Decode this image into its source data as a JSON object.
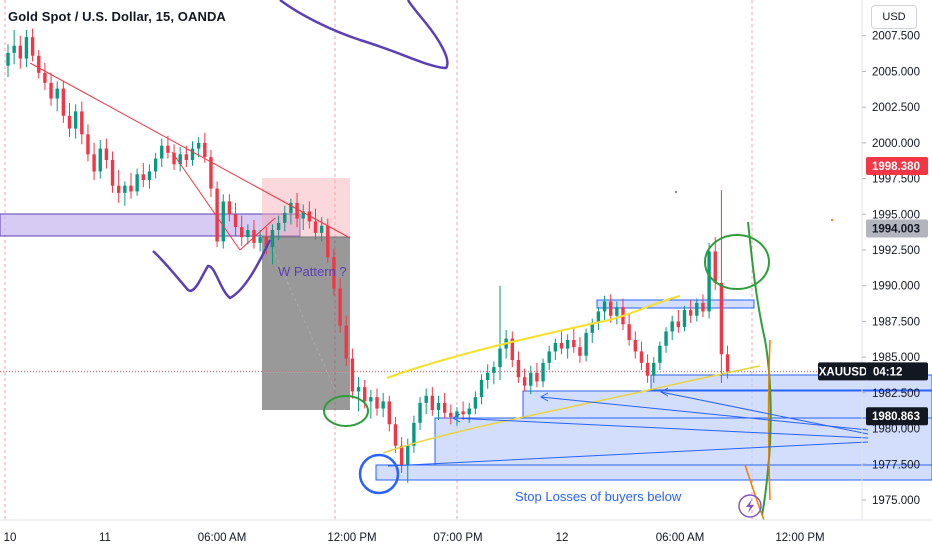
{
  "header": {
    "title": "Gold Spot / U.S. Dollar, 15, OANDA",
    "currency": "USD"
  },
  "colors": {
    "up": "#089981",
    "down": "#f23645",
    "blue_zone": "#2962ff",
    "purple_zone": "#9c7fd6",
    "pink_zone": "#f7a9b0",
    "trend_red": "#f23645",
    "yellow": "#f5e02a",
    "green": "#2e9e3a",
    "orange": "#f57c00",
    "purple_stroke": "#5b3fb6"
  },
  "chart_data": {
    "type": "candlestick",
    "symbol": "XAUUSD",
    "timeframe": "15",
    "ylim": [
      1973.6,
      2010.0
    ],
    "y_ticks": [
      1975.0,
      1977.5,
      1980.0,
      1982.5,
      1985.0,
      1987.5,
      1990.0,
      1992.5,
      1995.0,
      1997.5,
      2000.0,
      2002.5,
      2005.0,
      2007.5
    ],
    "y_tick_labels": [
      "1975.000",
      "1977.500",
      "1980.000",
      "1982.500",
      "1985.000",
      "1987.500",
      "1990.000",
      "1992.500",
      "1995.000",
      "1997.500",
      "2000.000",
      "2002.500",
      "2005.000",
      "2007.500"
    ],
    "x_tick_labels": [
      "10",
      "11",
      "06:00 AM",
      "12:00 PM",
      "07:00 PM",
      "12",
      "06:00 AM",
      "12:00 PM"
    ],
    "price_tags": [
      {
        "label": "1998.380",
        "value": 1998.38,
        "style": "red"
      },
      {
        "label": "1994.003",
        "value": 1994.003,
        "style": "grey"
      },
      {
        "label": "04:12",
        "value": 1984.0,
        "style": "dark",
        "symbol": "XAUUSD"
      },
      {
        "label": "1980.863",
        "value": 1980.863,
        "style": "dark"
      }
    ],
    "current_price_line": 1984.0,
    "annotations": [
      {
        "text": "W Pattern ?"
      },
      {
        "text": "Stop Losses of buyers below"
      }
    ],
    "candles": [
      [
        2005.4,
        2006.9,
        2004.6,
        2006.3
      ],
      [
        2006.3,
        2007.9,
        2005.5,
        2006.8
      ],
      [
        2006.8,
        2007.5,
        2005.2,
        2005.9
      ],
      [
        2005.9,
        2007.9,
        2005.3,
        2007.4
      ],
      [
        2007.4,
        2008.0,
        2005.7,
        2006.1
      ],
      [
        2006.1,
        2006.5,
        2004.5,
        2004.9
      ],
      [
        2004.9,
        2005.6,
        2003.7,
        2004.2
      ],
      [
        2004.2,
        2004.9,
        2002.6,
        2003.1
      ],
      [
        2003.1,
        2004.3,
        2002.2,
        2003.8
      ],
      [
        2003.8,
        2004.3,
        2001.4,
        2001.9
      ],
      [
        2001.9,
        2002.8,
        2000.4,
        2001.0
      ],
      [
        2001.0,
        2002.7,
        2000.3,
        2002.2
      ],
      [
        2002.2,
        2002.9,
        1999.9,
        2000.6
      ],
      [
        2000.6,
        2001.3,
        1998.7,
        1999.2
      ],
      [
        1999.2,
        2000.0,
        1997.4,
        1998.0
      ],
      [
        1998.0,
        2000.2,
        1997.5,
        1999.6
      ],
      [
        1999.6,
        2000.3,
        1998.2,
        1998.8
      ],
      [
        1998.8,
        1999.4,
        1996.5,
        1997.0
      ],
      [
        1997.0,
        1998.1,
        1995.8,
        1996.5
      ],
      [
        1996.5,
        1997.3,
        1995.6,
        1997.0
      ],
      [
        1997.0,
        1997.9,
        1996.1,
        1996.6
      ],
      [
        1996.6,
        1998.2,
        1996.3,
        1997.8
      ],
      [
        1997.8,
        1998.6,
        1996.9,
        1997.4
      ],
      [
        1997.4,
        1998.5,
        1996.8,
        1998.0
      ],
      [
        1998.0,
        1999.3,
        1997.5,
        1998.9
      ],
      [
        1998.9,
        2000.3,
        1998.3,
        1999.8
      ],
      [
        1999.8,
        2000.5,
        1998.9,
        1999.3
      ],
      [
        1999.3,
        1999.9,
        1998.1,
        1998.5
      ],
      [
        1998.5,
        1999.7,
        1998.0,
        1999.2
      ],
      [
        1999.2,
        1999.8,
        1998.3,
        1998.8
      ],
      [
        1998.8,
        2000.1,
        1998.4,
        1999.6
      ],
      [
        1999.6,
        2000.4,
        1999.0,
        2000.0
      ],
      [
        2000.0,
        2000.7,
        1998.6,
        1999.0
      ],
      [
        1999.0,
        1999.5,
        1996.2,
        1996.8
      ],
      [
        1996.8,
        1997.3,
        1992.7,
        1993.1
      ],
      [
        1993.1,
        1996.4,
        1992.6,
        1995.9
      ],
      [
        1995.9,
        1996.4,
        1994.5,
        1995.0
      ],
      [
        1995.0,
        1995.8,
        1993.5,
        1994.1
      ],
      [
        1994.1,
        1994.9,
        1992.8,
        1993.4
      ],
      [
        1993.4,
        1994.3,
        1992.9,
        1993.9
      ],
      [
        1993.9,
        1994.6,
        1992.6,
        1993.0
      ],
      [
        1993.0,
        1993.9,
        1992.4,
        1993.4
      ],
      [
        1993.4,
        1994.1,
        1992.2,
        1992.7
      ],
      [
        1992.7,
        1994.3,
        1991.5,
        1993.9
      ],
      [
        1993.9,
        1994.9,
        1993.2,
        1994.4
      ],
      [
        1994.4,
        1995.6,
        1993.8,
        1995.1
      ],
      [
        1995.1,
        1996.1,
        1994.3,
        1995.8
      ],
      [
        1995.8,
        1996.5,
        1994.1,
        1994.7
      ],
      [
        1994.7,
        1995.7,
        1993.9,
        1995.2
      ],
      [
        1995.2,
        1995.9,
        1994.0,
        1994.5
      ],
      [
        1994.5,
        1995.4,
        1993.2,
        1993.7
      ],
      [
        1993.7,
        1994.8,
        1993.1,
        1994.2
      ],
      [
        1994.2,
        1994.7,
        1991.6,
        1992.0
      ],
      [
        1992.0,
        1992.6,
        1989.3,
        1989.8
      ],
      [
        1989.8,
        1990.5,
        1986.7,
        1987.2
      ],
      [
        1987.2,
        1987.9,
        1984.4,
        1984.9
      ],
      [
        1984.9,
        1985.6,
        1982.1,
        1982.6
      ],
      [
        1982.6,
        1983.6,
        1981.2,
        1982.9
      ],
      [
        1982.9,
        1983.4,
        1981.4,
        1981.9
      ],
      [
        1981.9,
        1982.7,
        1980.7,
        1982.2
      ],
      [
        1982.2,
        1982.8,
        1980.9,
        1981.4
      ],
      [
        1981.4,
        1982.5,
        1980.8,
        1981.9
      ],
      [
        1981.9,
        1982.3,
        1979.8,
        1980.3
      ],
      [
        1980.3,
        1980.8,
        1978.3,
        1978.8
      ],
      [
        1978.8,
        1979.4,
        1976.9,
        1977.4
      ],
      [
        1977.4,
        1979.3,
        1976.2,
        1978.8
      ],
      [
        1978.8,
        1980.9,
        1978.3,
        1980.4
      ],
      [
        1980.4,
        1982.2,
        1979.9,
        1981.8
      ],
      [
        1981.8,
        1982.8,
        1981.0,
        1982.3
      ],
      [
        1982.3,
        1982.9,
        1980.9,
        1981.3
      ],
      [
        1981.3,
        1982.3,
        1980.6,
        1981.8
      ],
      [
        1981.8,
        1982.5,
        1980.7,
        1981.1
      ],
      [
        1981.1,
        1981.7,
        1980.3,
        1980.8
      ],
      [
        1980.8,
        1981.5,
        1980.2,
        1981.2
      ],
      [
        1981.2,
        1981.9,
        1980.6,
        1981.0
      ],
      [
        1981.0,
        1981.8,
        1980.4,
        1981.4
      ],
      [
        1981.4,
        1982.6,
        1981.0,
        1982.2
      ],
      [
        1982.2,
        1983.8,
        1981.7,
        1983.4
      ],
      [
        1983.4,
        1984.5,
        1982.8,
        1983.9
      ],
      [
        1983.9,
        1984.7,
        1983.1,
        1984.3
      ],
      [
        1984.3,
        1990.0,
        1983.4,
        1985.6
      ],
      [
        1985.6,
        1986.9,
        1984.9,
        1986.3
      ],
      [
        1986.3,
        1986.8,
        1984.3,
        1984.8
      ],
      [
        1984.8,
        1985.4,
        1983.2,
        1983.6
      ],
      [
        1983.6,
        1984.2,
        1982.6,
        1983.0
      ],
      [
        1983.0,
        1984.4,
        1982.4,
        1983.9
      ],
      [
        1983.9,
        1984.6,
        1982.9,
        1983.3
      ],
      [
        1983.3,
        1984.9,
        1982.9,
        1984.6
      ],
      [
        1984.6,
        1985.8,
        1984.1,
        1985.4
      ],
      [
        1985.4,
        1986.3,
        1984.8,
        1986.0
      ],
      [
        1986.0,
        1986.8,
        1985.2,
        1985.6
      ],
      [
        1985.6,
        1986.6,
        1984.9,
        1986.2
      ],
      [
        1986.2,
        1987.0,
        1985.3,
        1985.7
      ],
      [
        1985.7,
        1986.4,
        1984.6,
        1985.1
      ],
      [
        1985.1,
        1987.0,
        1984.7,
        1986.7
      ],
      [
        1986.7,
        1987.7,
        1986.0,
        1987.4
      ],
      [
        1987.4,
        1988.5,
        1986.9,
        1988.2
      ],
      [
        1988.2,
        1989.3,
        1987.6,
        1988.9
      ],
      [
        1988.9,
        1989.4,
        1987.4,
        1987.9
      ],
      [
        1987.9,
        1988.9,
        1987.3,
        1988.5
      ],
      [
        1988.5,
        1989.1,
        1986.9,
        1987.3
      ],
      [
        1987.3,
        1988.0,
        1985.8,
        1986.2
      ],
      [
        1986.2,
        1986.8,
        1984.9,
        1985.4
      ],
      [
        1985.4,
        1986.1,
        1984.1,
        1984.6
      ],
      [
        1984.6,
        1985.2,
        1983.2,
        1983.7
      ],
      [
        1983.7,
        1985.0,
        1983.2,
        1984.6
      ],
      [
        1984.6,
        1986.1,
        1984.1,
        1985.8
      ],
      [
        1985.8,
        1987.1,
        1985.3,
        1986.8
      ],
      [
        1986.8,
        1987.9,
        1986.2,
        1987.5
      ],
      [
        1987.5,
        1988.3,
        1986.7,
        1987.1
      ],
      [
        1987.1,
        1988.6,
        1986.8,
        1988.3
      ],
      [
        1988.3,
        1989.0,
        1987.4,
        1987.9
      ],
      [
        1987.9,
        1989.1,
        1987.5,
        1988.8
      ],
      [
        1988.8,
        1989.4,
        1987.8,
        1988.2
      ],
      [
        1988.2,
        1993.0,
        1987.7,
        1992.4
      ],
      [
        1992.4,
        1993.4,
        1989.7,
        1990.2
      ],
      [
        1990.2,
        1996.7,
        1983.2,
        1985.2
      ],
      [
        1985.2,
        1985.8,
        1983.5,
        1984.0
      ]
    ]
  }
}
